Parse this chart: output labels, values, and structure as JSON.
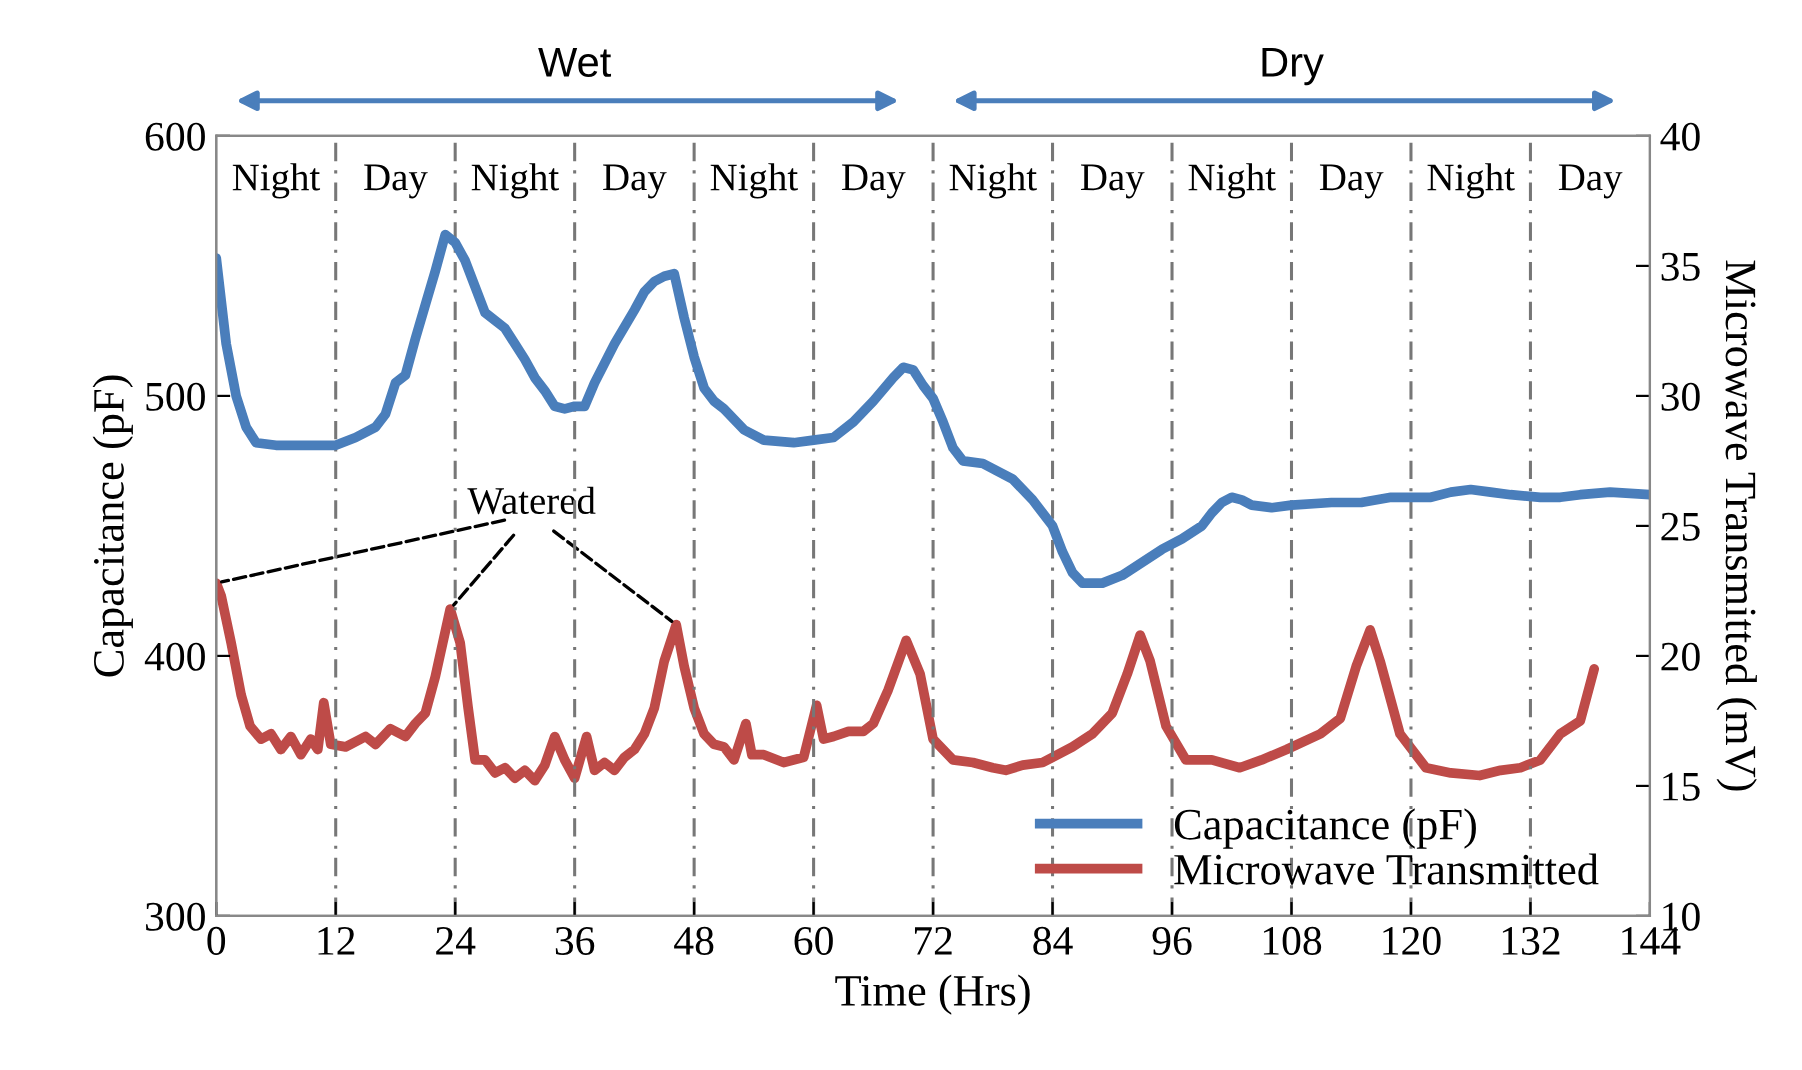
{
  "chart_data": {
    "type": "line",
    "xlabel": "Time (Hrs)",
    "ylabel": "Capacitance (pF)",
    "y2label": "Microwave Transmitted (mV)",
    "xlim": [
      0,
      144
    ],
    "xticks": [
      0,
      12,
      24,
      36,
      48,
      60,
      72,
      84,
      96,
      108,
      120,
      132,
      144
    ],
    "ylim": [
      300,
      600
    ],
    "yticks": [
      300,
      400,
      500,
      600
    ],
    "y2lim": [
      10,
      40
    ],
    "y2ticks": [
      10,
      15,
      20,
      25,
      30,
      35,
      40
    ],
    "legend": "bottom right",
    "grid": false,
    "marker": "none",
    "line_style": "solid",
    "series": [
      {
        "name": "Capacitance (pF)",
        "color": "#4a7ebb",
        "x": [
          0,
          1,
          2,
          3,
          4,
          6,
          9,
          12,
          14,
          16,
          17,
          18,
          19,
          20,
          21,
          22,
          23,
          24,
          25,
          26,
          27,
          29,
          30,
          31,
          32,
          33,
          34,
          35,
          36,
          37,
          38,
          40,
          42,
          43,
          44,
          45,
          46,
          47,
          48,
          49,
          50,
          51,
          53,
          55,
          58,
          60,
          62,
          64,
          66,
          68,
          69,
          70,
          71,
          72,
          73,
          74,
          75,
          77,
          80,
          82,
          84,
          85,
          86,
          87,
          89,
          91,
          93,
          95,
          97,
          99,
          100,
          101,
          102,
          103,
          104,
          106,
          108,
          112,
          115,
          118,
          120,
          122,
          124,
          126,
          128,
          130,
          133,
          135,
          137,
          140,
          144
        ],
        "values": [
          553,
          520,
          500,
          488,
          482,
          481,
          481,
          481,
          484,
          488,
          493,
          505,
          508,
          522,
          535,
          548,
          562,
          559,
          552,
          542,
          532,
          526,
          520,
          514,
          507,
          502,
          496,
          495,
          496,
          496,
          505,
          520,
          533,
          540,
          544,
          546,
          547,
          530,
          515,
          503,
          498,
          495,
          487,
          483,
          482,
          483,
          484,
          490,
          498,
          507,
          511,
          510,
          504,
          499,
          490,
          480,
          475,
          474,
          468,
          460,
          450,
          440,
          432,
          428,
          428,
          431,
          436,
          441,
          445,
          450,
          455,
          459,
          461,
          460,
          458,
          457,
          458,
          459,
          459,
          461,
          461,
          461,
          463,
          464,
          463,
          462,
          461,
          461,
          462,
          463,
          462
        ]
      },
      {
        "name": "Microwave Transmitted",
        "color": "#be4b48",
        "axis": "y2",
        "x": [
          0,
          0.5,
          1.5,
          2.5,
          3.4,
          4.5,
          5.5,
          6.5,
          7.5,
          8.5,
          9.5,
          10.2,
          10.8,
          11.5,
          13,
          15,
          16,
          17.5,
          19,
          20,
          21,
          22,
          23.5,
          24.5,
          25.3,
          26,
          27,
          28,
          29,
          30,
          31,
          32,
          33,
          34,
          35,
          36,
          37.2,
          38,
          39,
          40,
          41,
          42,
          43,
          44,
          45,
          46.2,
          47,
          48,
          49,
          50,
          51,
          52,
          53.2,
          53.8,
          55,
          57,
          59,
          60.3,
          61,
          62,
          63.5,
          65,
          66,
          67.5,
          69.3,
          70.7,
          72,
          74,
          76,
          78,
          79.3,
          81,
          83,
          86,
          88,
          90,
          91.5,
          92.8,
          93.8,
          95.4,
          97.4,
          100,
          102.8,
          105,
          107.5,
          110.9,
          112.9,
          114.5,
          115.9,
          116.9,
          118.9,
          121.5,
          124,
          126.9,
          129,
          131,
          133,
          135,
          137,
          138.4
        ],
        "values": [
          22.8,
          22.3,
          20.5,
          18.5,
          17.3,
          16.8,
          17.0,
          16.4,
          16.9,
          16.2,
          16.8,
          16.4,
          18.2,
          16.6,
          16.5,
          16.9,
          16.6,
          17.2,
          16.9,
          17.4,
          17.8,
          19.2,
          21.8,
          20.5,
          18.0,
          16.0,
          16.0,
          15.5,
          15.7,
          15.3,
          15.6,
          15.2,
          15.8,
          16.9,
          16.0,
          15.3,
          16.9,
          15.6,
          15.9,
          15.6,
          16.1,
          16.4,
          17.0,
          18.0,
          19.8,
          21.2,
          19.6,
          18.0,
          17.0,
          16.6,
          16.5,
          16.0,
          17.4,
          16.2,
          16.2,
          15.9,
          16.1,
          18.1,
          16.8,
          16.9,
          17.1,
          17.1,
          17.4,
          18.7,
          20.6,
          19.3,
          16.8,
          16.0,
          15.9,
          15.7,
          15.6,
          15.8,
          15.9,
          16.5,
          17.0,
          17.8,
          19.3,
          20.8,
          19.8,
          17.3,
          16.0,
          16.0,
          15.7,
          16.0,
          16.4,
          17.0,
          17.6,
          19.6,
          21.0,
          19.8,
          17.0,
          15.7,
          15.5,
          15.4,
          15.6,
          15.7,
          16.0,
          17.0,
          17.5,
          19.5
        ]
      }
    ],
    "ref_lines": [
      {
        "axis": "x",
        "value": 12,
        "line_style": "dashed",
        "color": "#777777"
      },
      {
        "axis": "x",
        "value": 24,
        "line_style": "dashed",
        "color": "#777777"
      },
      {
        "axis": "x",
        "value": 36,
        "line_style": "dashed",
        "color": "#777777"
      },
      {
        "axis": "x",
        "value": 48,
        "line_style": "dashed",
        "color": "#777777"
      },
      {
        "axis": "x",
        "value": 60,
        "line_style": "dashed",
        "color": "#777777"
      },
      {
        "axis": "x",
        "value": 72,
        "line_style": "dashed",
        "color": "#777777"
      },
      {
        "axis": "x",
        "value": 84,
        "line_style": "dashed",
        "color": "#777777"
      },
      {
        "axis": "x",
        "value": 96,
        "line_style": "dashed",
        "color": "#777777"
      },
      {
        "axis": "x",
        "value": 108,
        "line_style": "dashed",
        "color": "#777777"
      },
      {
        "axis": "x",
        "value": 120,
        "line_style": "dashed",
        "color": "#777777"
      },
      {
        "axis": "x",
        "value": 132,
        "line_style": "dashed",
        "color": "#777777"
      }
    ],
    "annotations": [
      "Wet",
      "Dry",
      "Night",
      "Day",
      "Night",
      "Day",
      "Night",
      "Day",
      "Night",
      "Day",
      "Night",
      "Day",
      "Night",
      "Day",
      {
        "text": "Watered",
        "x": 0,
        "y": 428
      }
    ]
  }
}
